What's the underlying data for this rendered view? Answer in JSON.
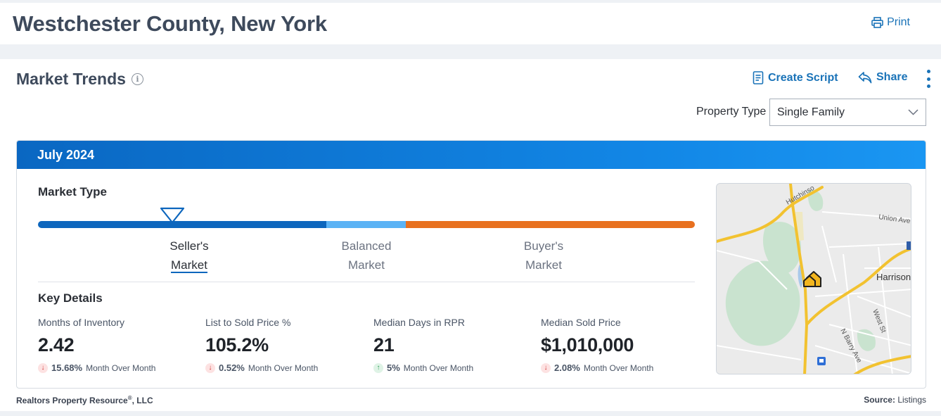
{
  "header": {
    "title": "Westchester County, New York",
    "print_label": "Print"
  },
  "section": {
    "title": "Market Trends",
    "info_icon": "info-icon",
    "actions": {
      "create_script": "Create Script",
      "share": "Share"
    }
  },
  "property_type": {
    "label": "Property Type",
    "selected": "Single Family"
  },
  "panel": {
    "month": "July 2024",
    "market_type": {
      "title": "Market Type",
      "labels": [
        {
          "line1": "Seller's",
          "line2": "Market"
        },
        {
          "line1": "Balanced",
          "line2": "Market"
        },
        {
          "line1": "Buyer's",
          "line2": "Market"
        }
      ],
      "selected": "Seller's Market",
      "indicator_position": 0.2,
      "colors": {
        "seller": "#0d66bd",
        "balanced": "#5bb3f5",
        "buyer": "#e8701f"
      }
    },
    "key_details": {
      "title": "Key Details",
      "metrics": [
        {
          "label": "Months of Inventory",
          "value": "2.42",
          "change": "15.68%",
          "direction": "down",
          "period": "Month Over Month"
        },
        {
          "label": "List to Sold Price %",
          "value": "105.2%",
          "change": "0.52%",
          "direction": "down",
          "period": "Month Over Month"
        },
        {
          "label": "Median Days in RPR",
          "value": "21",
          "change": "5%",
          "direction": "up",
          "period": "Month Over Month"
        },
        {
          "label": "Median Sold Price",
          "value": "$1,010,000",
          "change": "2.08%",
          "direction": "down",
          "period": "Month Over Month"
        }
      ]
    },
    "map": {
      "labels": {
        "hutchinson": "Hutchinso",
        "union_ave": "Union Ave",
        "harrison": "Harrison",
        "west_st": "West St",
        "n_barry_ave": "N Barry Ave"
      }
    }
  },
  "footer": {
    "company": "Realtors Property Resource",
    "registered": "®",
    "company_suffix": ", LLC",
    "source_label": "Source:",
    "source_value": "Listings"
  }
}
